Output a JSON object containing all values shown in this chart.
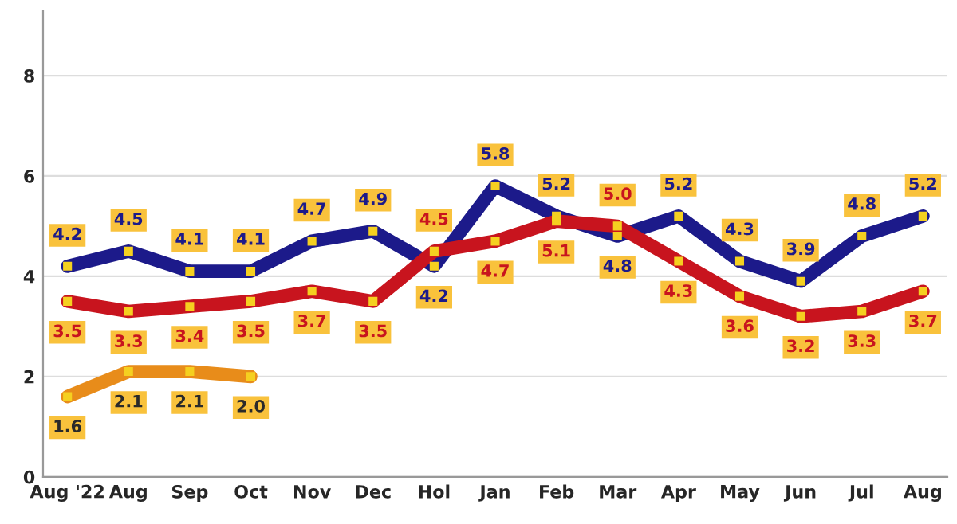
{
  "chart_data": {
    "type": "line",
    "categories": [
      "Aug '22",
      "Aug",
      "Sep",
      "Oct",
      "Nov",
      "Dec",
      "Hol",
      "Jan",
      "Feb",
      "Mar",
      "Apr",
      "May",
      "Jun",
      "Jul",
      "Aug"
    ],
    "series": [
      {
        "color": "#1c1a8a",
        "values": [
          4.2,
          4.5,
          4.1,
          4.1,
          4.7,
          4.9,
          4.2,
          5.8,
          5.2,
          4.8,
          5.2,
          4.3,
          3.9,
          4.8,
          5.2
        ],
        "value_labels": [
          "4.2",
          "4.5",
          "4.1",
          "4.1",
          "4.7",
          "4.9",
          "4.2",
          "5.8",
          "5.2",
          "4.8",
          "5.2",
          "4.3",
          "3.9",
          "4.8",
          "5.2"
        ]
      },
      {
        "color": "#c8141e",
        "values": [
          3.5,
          3.3,
          3.4,
          3.5,
          3.7,
          3.5,
          4.5,
          4.7,
          5.1,
          5.0,
          4.3,
          3.6,
          3.2,
          3.3,
          3.7
        ],
        "value_labels": [
          "3.5",
          "3.3",
          "3.4",
          "3.5",
          "3.7",
          "3.5",
          "4.5",
          "4.7",
          "5.1",
          "5.0",
          "4.3",
          "3.6",
          "3.2",
          "3.3",
          "3.7"
        ]
      },
      {
        "color": "#e88c1a",
        "values": [
          1.6,
          2.1,
          2.1,
          2.0,
          null,
          null,
          null,
          null,
          null,
          null,
          null,
          null,
          null,
          null,
          null
        ],
        "value_labels": [
          "1.6",
          "2.1",
          "2.1",
          "2.0",
          null,
          null,
          null,
          null,
          null,
          null,
          null,
          null,
          null,
          null,
          null
        ]
      }
    ],
    "ylim": [
      0,
      9.3
    ],
    "yticks": [
      0,
      2,
      4,
      6,
      8
    ],
    "grid": "y",
    "marker": "square",
    "line_style": "solid"
  }
}
